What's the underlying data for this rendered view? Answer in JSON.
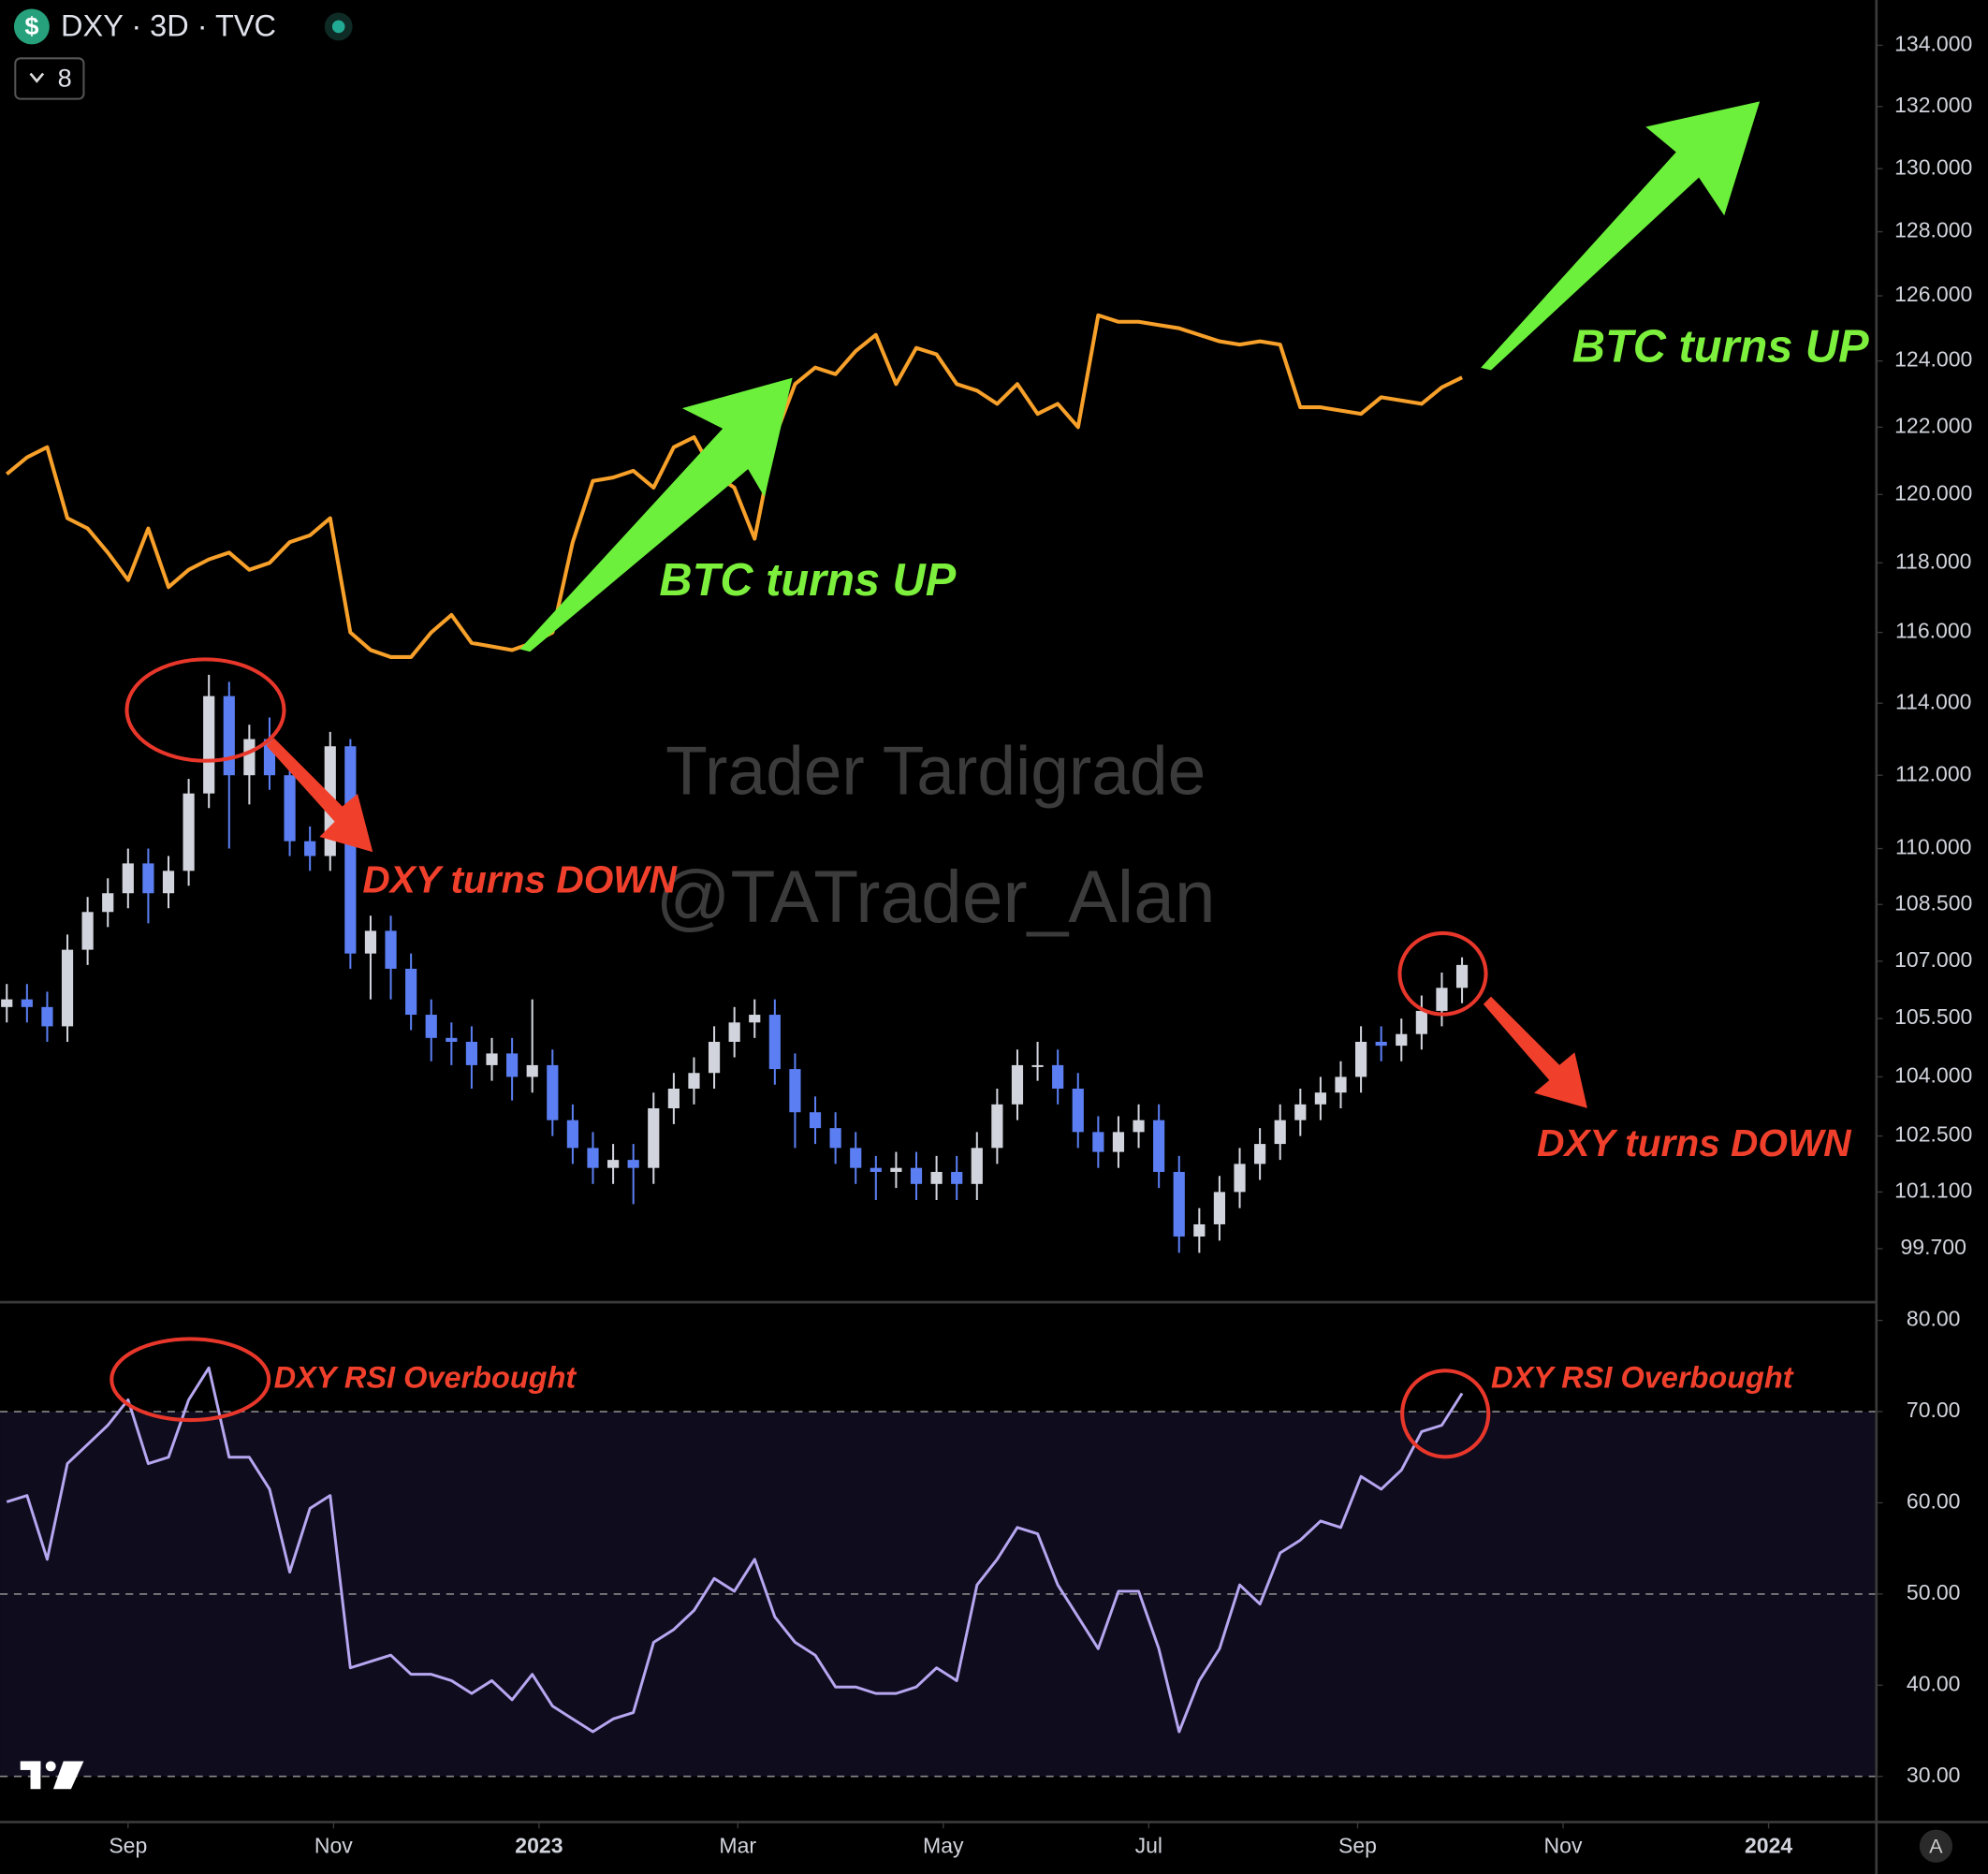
{
  "header": {
    "symbol_icon": "$",
    "title": "DXY · 3D · TVC",
    "collapsed_count": "8"
  },
  "watermark": {
    "line1": "Trader Tardigrade",
    "line2": "@TATrader_Alan"
  },
  "footer": {
    "auto_scale_button": "A"
  },
  "chart_data": [
    {
      "type": "candlestick",
      "log_scale": true,
      "up_color": "#d1d4dc",
      "down_color": "#5b7ff2",
      "x": [
        -36,
        -30,
        -24,
        -18,
        -12,
        -6,
        0,
        6,
        12,
        18,
        24,
        30,
        36,
        42,
        48,
        54,
        60,
        66,
        72,
        78,
        84,
        90,
        96,
        102,
        108,
        114,
        120,
        126,
        132,
        138,
        144,
        150,
        156,
        162,
        168,
        174,
        180,
        186,
        192,
        198,
        204,
        210,
        216,
        222,
        228,
        234,
        240,
        246,
        252,
        258,
        264,
        270,
        276,
        282,
        288,
        294,
        300,
        306,
        312,
        318,
        324,
        330,
        336,
        342,
        348,
        354,
        360,
        366,
        372,
        378,
        384,
        390,
        396
      ],
      "open": [
        105.8,
        106.0,
        105.8,
        105.3,
        107.3,
        108.3,
        108.8,
        109.6,
        108.8,
        109.4,
        111.5,
        114.2,
        112.0,
        113.0,
        112.0,
        110.2,
        109.8,
        112.8,
        107.2,
        107.8,
        106.8,
        105.6,
        105.0,
        104.9,
        104.3,
        104.6,
        104.0,
        104.3,
        102.9,
        102.2,
        101.7,
        101.9,
        101.7,
        103.2,
        103.7,
        104.1,
        104.9,
        105.4,
        105.6,
        104.2,
        103.1,
        102.7,
        102.2,
        101.7,
        101.6,
        101.7,
        101.3,
        101.6,
        101.3,
        102.2,
        103.3,
        104.3,
        104.3,
        103.7,
        102.6,
        102.1,
        102.6,
        102.9,
        101.6,
        100.0,
        100.3,
        101.1,
        101.8,
        102.3,
        102.9,
        103.3,
        103.6,
        104.0,
        104.9,
        104.8,
        105.1,
        105.7,
        106.3
      ],
      "high": [
        106.4,
        106.4,
        106.2,
        107.7,
        108.7,
        109.2,
        110.0,
        110.0,
        109.8,
        111.9,
        114.8,
        114.6,
        113.4,
        113.6,
        112.4,
        110.6,
        113.2,
        113.0,
        108.2,
        108.2,
        107.2,
        106.0,
        105.4,
        105.3,
        105.0,
        105.0,
        106.0,
        104.7,
        103.3,
        102.6,
        102.3,
        102.3,
        103.6,
        104.1,
        104.5,
        105.3,
        105.8,
        106.0,
        106.0,
        104.6,
        103.5,
        103.1,
        102.6,
        102.0,
        102.1,
        102.1,
        102.0,
        102.0,
        102.6,
        103.7,
        104.7,
        104.9,
        104.7,
        104.1,
        103.0,
        103.0,
        103.3,
        103.3,
        102.0,
        100.7,
        101.5,
        102.2,
        102.7,
        103.3,
        103.7,
        104.0,
        104.4,
        105.3,
        105.3,
        105.5,
        106.1,
        106.7,
        107.1
      ],
      "low": [
        105.4,
        105.4,
        104.9,
        104.9,
        106.9,
        107.9,
        108.4,
        108.0,
        108.4,
        109.0,
        111.1,
        110.0,
        111.2,
        111.6,
        109.8,
        109.4,
        109.4,
        106.8,
        106.0,
        106.0,
        105.2,
        104.4,
        104.3,
        103.7,
        103.9,
        103.4,
        103.6,
        102.5,
        101.8,
        101.3,
        101.3,
        100.8,
        101.3,
        102.8,
        103.3,
        103.7,
        104.5,
        105.0,
        103.8,
        102.2,
        102.3,
        101.8,
        101.3,
        100.9,
        101.2,
        100.9,
        100.9,
        100.9,
        100.9,
        101.8,
        102.9,
        103.9,
        103.3,
        102.2,
        101.7,
        101.7,
        102.2,
        101.2,
        99.6,
        99.6,
        99.9,
        100.7,
        101.4,
        101.9,
        102.5,
        102.9,
        103.2,
        103.6,
        104.4,
        104.4,
        104.7,
        105.3,
        105.9
      ],
      "close": [
        106.0,
        105.8,
        105.3,
        107.3,
        108.3,
        108.8,
        109.6,
        108.8,
        109.4,
        111.5,
        114.2,
        112.0,
        113.0,
        112.0,
        110.2,
        109.8,
        112.8,
        107.2,
        107.8,
        106.8,
        105.6,
        105.0,
        104.9,
        104.3,
        104.6,
        104.0,
        104.3,
        102.9,
        102.2,
        101.7,
        101.9,
        101.7,
        103.2,
        103.7,
        104.1,
        104.9,
        105.4,
        105.6,
        104.2,
        103.1,
        102.7,
        102.2,
        101.7,
        101.6,
        101.7,
        101.3,
        101.6,
        101.3,
        102.2,
        103.3,
        104.3,
        104.3,
        103.7,
        102.6,
        102.1,
        102.6,
        102.9,
        101.6,
        100.0,
        100.3,
        101.1,
        101.8,
        102.3,
        102.9,
        103.3,
        103.6,
        104.0,
        104.9,
        104.8,
        105.1,
        105.7,
        106.3,
        106.9
      ],
      "line": {
        "color": "#f7a02a",
        "values": [
          120.6,
          121.1,
          121.4,
          119.3,
          119.0,
          118.3,
          117.5,
          119.0,
          117.3,
          117.8,
          118.1,
          118.3,
          117.8,
          118.0,
          118.6,
          118.8,
          119.3,
          116.0,
          115.5,
          115.3,
          115.3,
          116.0,
          116.5,
          115.7,
          115.6,
          115.5,
          115.7,
          116.0,
          118.6,
          120.4,
          120.5,
          120.7,
          120.2,
          121.4,
          121.7,
          120.6,
          120.2,
          118.7,
          121.7,
          123.3,
          123.8,
          123.6,
          124.3,
          124.8,
          123.3,
          124.4,
          124.2,
          123.3,
          123.1,
          122.7,
          123.3,
          122.4,
          122.7,
          122.0,
          125.4,
          125.2,
          125.2,
          125.1,
          125.0,
          124.8,
          124.6,
          124.5,
          124.6,
          124.5,
          122.6,
          122.6,
          122.5,
          122.4,
          122.9,
          122.8,
          122.7,
          123.2,
          123.5
        ]
      },
      "xlim": [
        -38,
        519
      ],
      "ylim": [
        98.4,
        135.5
      ],
      "yticks": [
        {
          "value": 134,
          "label": "134.000"
        },
        {
          "value": 132,
          "label": "132.000"
        },
        {
          "value": 130,
          "label": "130.000"
        },
        {
          "value": 128,
          "label": "128.000"
        },
        {
          "value": 126,
          "label": "126.000"
        },
        {
          "value": 124,
          "label": "124.000"
        },
        {
          "value": 122,
          "label": "122.000"
        },
        {
          "value": 120,
          "label": "120.000"
        },
        {
          "value": 118,
          "label": "118.000"
        },
        {
          "value": 116,
          "label": "116.000"
        },
        {
          "value": 114,
          "label": "114.000"
        },
        {
          "value": 112,
          "label": "112.000"
        },
        {
          "value": 110,
          "label": "110.000"
        },
        {
          "value": 108.5,
          "label": "108.500"
        },
        {
          "value": 107,
          "label": "107.000"
        },
        {
          "value": 105.5,
          "label": "105.500"
        },
        {
          "value": 104,
          "label": "104.000"
        },
        {
          "value": 102.5,
          "label": "102.500"
        },
        {
          "value": 101.1,
          "label": "101.100"
        },
        {
          "value": 99.7,
          "label": "99.700"
        }
      ],
      "annotations": [
        {
          "text": "BTC turns UP",
          "color": "#7cf03c"
        },
        {
          "text": "BTC turns UP",
          "color": "#7cf03c"
        },
        {
          "text": "DXY turns DOWN",
          "color": "#f0402c"
        },
        {
          "text": "DXY turns DOWN",
          "color": "#f0402c"
        }
      ]
    },
    {
      "type": "line",
      "color": "#b7a6f0",
      "band": [
        30,
        70
      ],
      "levels": [
        70,
        50,
        30
      ],
      "x": [
        -36,
        -30,
        -24,
        -18,
        -12,
        -6,
        0,
        6,
        12,
        18,
        24,
        30,
        36,
        42,
        48,
        54,
        60,
        66,
        72,
        78,
        84,
        90,
        96,
        102,
        108,
        114,
        120,
        126,
        132,
        138,
        144,
        150,
        156,
        162,
        168,
        174,
        180,
        186,
        192,
        198,
        204,
        210,
        216,
        222,
        228,
        234,
        240,
        246,
        252,
        258,
        264,
        270,
        276,
        282,
        288,
        294,
        300,
        306,
        312,
        318,
        324,
        330,
        336,
        342,
        348,
        354,
        360,
        366,
        372,
        378,
        384,
        390,
        396
      ],
      "values": [
        60.1,
        60.8,
        53.8,
        64.3,
        66.4,
        68.5,
        71.3,
        64.3,
        65.0,
        71.3,
        74.8,
        65.0,
        65.0,
        61.5,
        52.4,
        59.4,
        60.8,
        41.9,
        42.6,
        43.3,
        41.2,
        41.2,
        40.5,
        39.1,
        40.5,
        38.4,
        41.2,
        37.7,
        36.3,
        34.9,
        36.3,
        37.0,
        44.7,
        46.1,
        48.2,
        51.7,
        50.3,
        53.8,
        47.5,
        44.7,
        43.3,
        39.8,
        39.8,
        39.1,
        39.1,
        39.8,
        41.9,
        40.5,
        51.0,
        53.8,
        57.3,
        56.6,
        51.0,
        47.5,
        44.0,
        50.3,
        50.3,
        44.0,
        34.9,
        40.5,
        44.0,
        51.0,
        48.9,
        54.5,
        55.9,
        58.0,
        57.3,
        62.9,
        61.5,
        63.6,
        67.8,
        68.5,
        72.0
      ],
      "xlim": [
        -38,
        519
      ],
      "ylim": [
        25,
        82
      ],
      "yticks": [
        {
          "value": 80,
          "label": "80.00"
        },
        {
          "value": 70,
          "label": "70.00"
        },
        {
          "value": 60,
          "label": "60.00"
        },
        {
          "value": 50,
          "label": "50.00"
        },
        {
          "value": 40,
          "label": "40.00"
        },
        {
          "value": 30,
          "label": "30.00"
        }
      ],
      "xticks": [
        {
          "value": 0,
          "label": "Sep"
        },
        {
          "value": 61,
          "label": "Nov"
        },
        {
          "value": 122,
          "label": "2023"
        },
        {
          "value": 181,
          "label": "Mar"
        },
        {
          "value": 242,
          "label": "May"
        },
        {
          "value": 303,
          "label": "Jul"
        },
        {
          "value": 365,
          "label": "Sep"
        },
        {
          "value": 426,
          "label": "Nov"
        },
        {
          "value": 487,
          "label": "2024"
        }
      ],
      "annotations": [
        {
          "text": "DXY RSI Overbought",
          "color": "#f0402c"
        },
        {
          "text": "DXY RSI Overbought",
          "color": "#f0402c"
        }
      ]
    }
  ]
}
